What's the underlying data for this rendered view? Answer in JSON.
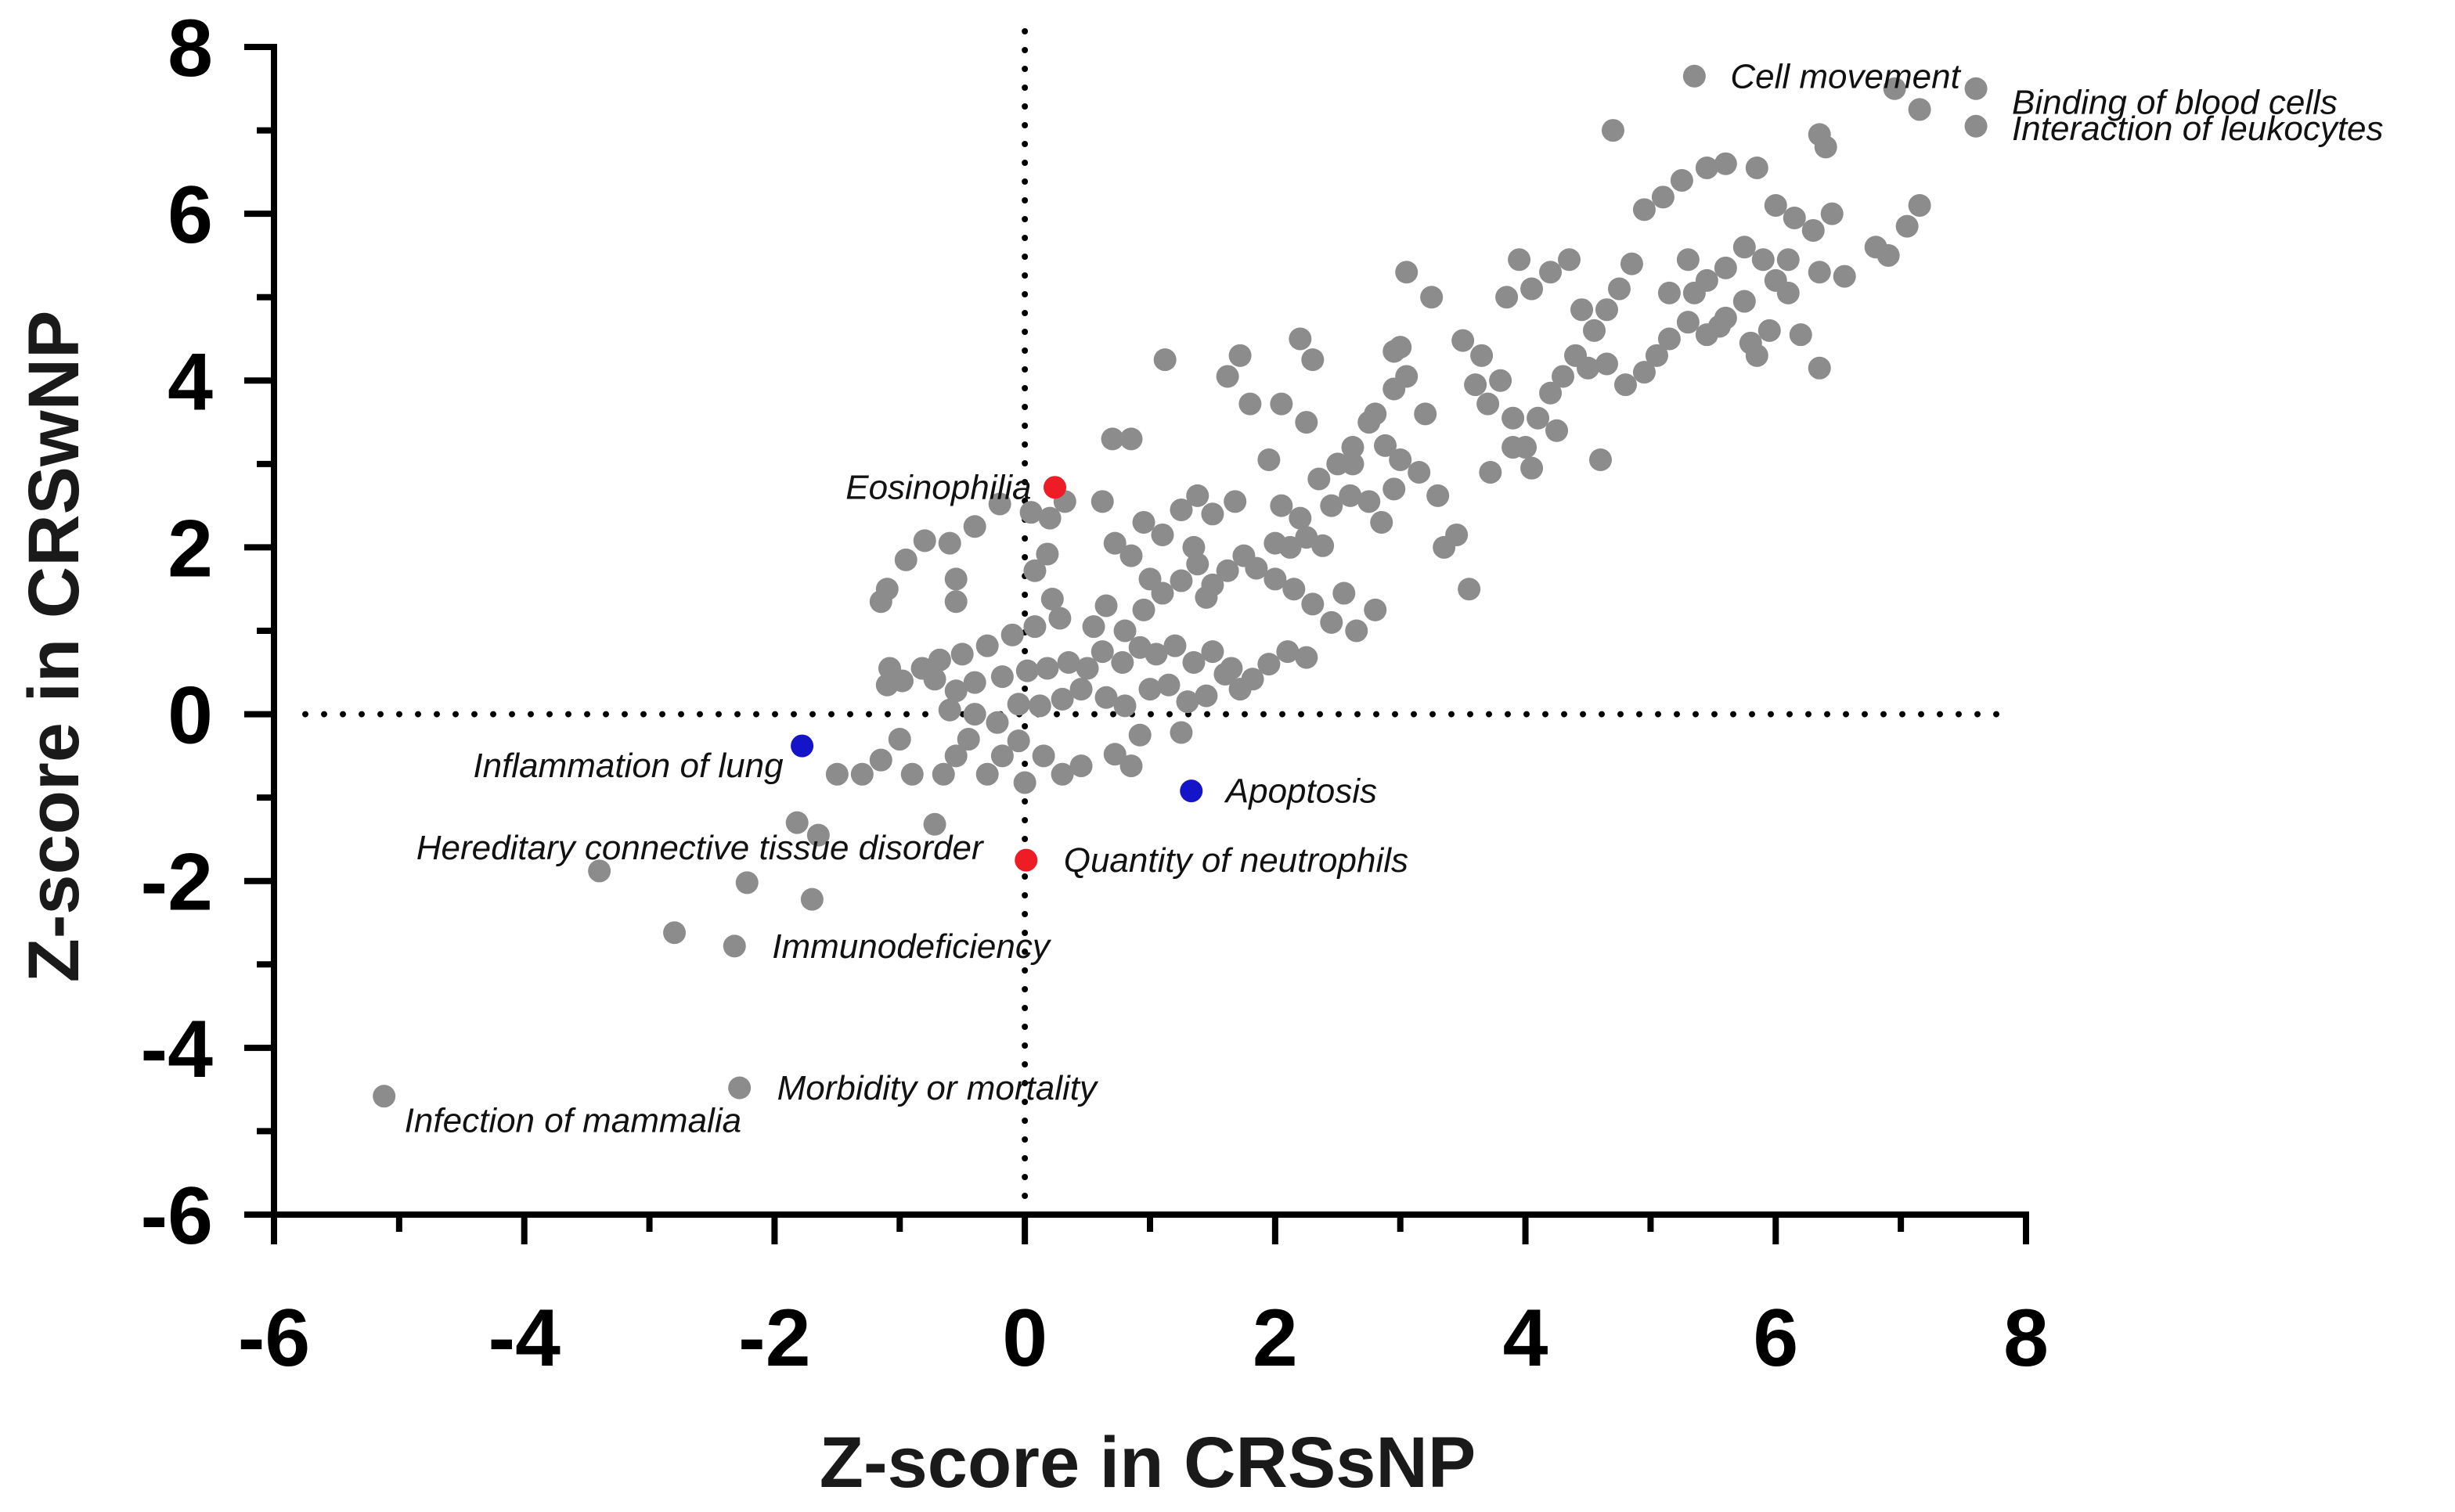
{
  "chart_data": {
    "type": "scatter",
    "xlabel": "Z-score in CRSsNP",
    "ylabel": "Z-score in CRSwNP",
    "xlim": [
      -6,
      8
    ],
    "ylim": [
      -6,
      8
    ],
    "x_ticks": [
      -6,
      -4,
      -2,
      0,
      2,
      4,
      6,
      8
    ],
    "y_ticks": [
      8,
      6,
      4,
      2,
      0,
      -2,
      -4,
      -6
    ],
    "x_tick_labels": [
      "-6",
      "-4",
      "-2",
      "0",
      "2",
      "4",
      "6",
      "8"
    ],
    "y_tick_labels": [
      "8",
      "6",
      "4",
      "2",
      "0",
      "-2",
      "-4",
      "-6"
    ],
    "reference_lines": {
      "x": 0,
      "y": 0,
      "style": "dotted"
    },
    "grid": false,
    "legend": "none",
    "colors": {
      "default": "#8c8c8c",
      "red": "#ee1c24",
      "blue": "#1414c8"
    },
    "highlighted": [
      {
        "label": "Cell movement",
        "x": 5.35,
        "y": 7.65,
        "color": "gray"
      },
      {
        "label": "Binding of blood cells",
        "x": 7.6,
        "y": 7.5,
        "color": "gray"
      },
      {
        "label": "Interaction of leukocytes",
        "x": 7.6,
        "y": 7.05,
        "color": "gray"
      },
      {
        "label": "Eosinophilia",
        "x": 0.24,
        "y": 2.72,
        "color": "red"
      },
      {
        "label": "Quantity of neutrophils",
        "x": 0.01,
        "y": -1.75,
        "color": "red"
      },
      {
        "label": "Inflammation of lung",
        "x": -1.78,
        "y": -0.38,
        "color": "blue"
      },
      {
        "label": "Apoptosis",
        "x": 1.33,
        "y": -0.92,
        "color": "blue"
      },
      {
        "label": "Hereditary connective tissue disorder",
        "x": -3.4,
        "y": -1.88,
        "color": "gray"
      },
      {
        "label": "Immunodeficiency",
        "x": -2.32,
        "y": -2.78,
        "color": "gray"
      },
      {
        "label": "Morbidity or mortality",
        "x": -2.28,
        "y": -4.48,
        "color": "gray"
      },
      {
        "label": "Infection of mammalia",
        "x": -5.12,
        "y": -4.58,
        "color": "gray"
      }
    ],
    "points": [
      [
        -2.8,
        -2.62
      ],
      [
        -2.22,
        -2.02
      ],
      [
        -1.7,
        -2.22
      ],
      [
        -1.65,
        -1.45
      ],
      [
        -1.82,
        -1.3
      ],
      [
        -1.5,
        -0.72
      ],
      [
        -1.3,
        -0.72
      ],
      [
        -1.15,
        -0.55
      ],
      [
        -1.0,
        -0.3
      ],
      [
        -0.9,
        -0.72
      ],
      [
        -0.72,
        -1.32
      ],
      [
        -0.65,
        -0.72
      ],
      [
        -0.55,
        -0.5
      ],
      [
        -0.45,
        -0.3
      ],
      [
        -0.3,
        -0.72
      ],
      [
        -0.18,
        -0.5
      ],
      [
        -0.05,
        -0.32
      ],
      [
        0.0,
        -0.82
      ],
      [
        0.15,
        -0.5
      ],
      [
        0.3,
        -0.72
      ],
      [
        0.45,
        -0.62
      ],
      [
        0.72,
        -0.48
      ],
      [
        0.85,
        -0.62
      ],
      [
        0.92,
        -0.25
      ],
      [
        1.25,
        -0.22
      ],
      [
        -1.15,
        1.35
      ],
      [
        -1.1,
        1.5
      ],
      [
        -0.95,
        1.85
      ],
      [
        -0.8,
        2.08
      ],
      [
        -0.6,
        2.05
      ],
      [
        -0.55,
        1.62
      ],
      [
        -0.55,
        1.35
      ],
      [
        -0.4,
        2.25
      ],
      [
        -0.2,
        2.52
      ],
      [
        0.05,
        2.42
      ],
      [
        0.2,
        2.35
      ],
      [
        0.32,
        2.55
      ],
      [
        0.18,
        1.92
      ],
      [
        0.08,
        1.72
      ],
      [
        0.22,
        1.38
      ],
      [
        0.28,
        1.15
      ],
      [
        0.08,
        1.05
      ],
      [
        -0.1,
        0.95
      ],
      [
        -0.3,
        0.82
      ],
      [
        -0.5,
        0.72
      ],
      [
        -0.68,
        0.65
      ],
      [
        -0.82,
        0.55
      ],
      [
        -1.08,
        0.55
      ],
      [
        -1.1,
        0.35
      ],
      [
        -0.98,
        0.4
      ],
      [
        -0.72,
        0.42
      ],
      [
        -0.55,
        0.28
      ],
      [
        -0.4,
        0.38
      ],
      [
        -0.18,
        0.45
      ],
      [
        0.02,
        0.52
      ],
      [
        0.18,
        0.55
      ],
      [
        0.35,
        0.62
      ],
      [
        0.5,
        0.55
      ],
      [
        0.62,
        0.75
      ],
      [
        0.78,
        0.62
      ],
      [
        0.92,
        0.8
      ],
      [
        1.05,
        0.72
      ],
      [
        1.2,
        0.82
      ],
      [
        1.35,
        0.62
      ],
      [
        1.5,
        0.75
      ],
      [
        1.65,
        0.55
      ],
      [
        1.82,
        0.42
      ],
      [
        1.95,
        0.6
      ],
      [
        2.1,
        0.75
      ],
      [
        2.25,
        0.68
      ],
      [
        -0.6,
        0.05
      ],
      [
        -0.4,
        0.0
      ],
      [
        -0.22,
        -0.1
      ],
      [
        -0.05,
        0.12
      ],
      [
        0.12,
        0.1
      ],
      [
        0.3,
        0.18
      ],
      [
        0.45,
        0.3
      ],
      [
        0.65,
        0.2
      ],
      [
        0.8,
        0.1
      ],
      [
        1.0,
        0.3
      ],
      [
        1.15,
        0.35
      ],
      [
        1.3,
        0.15
      ],
      [
        1.45,
        0.22
      ],
      [
        1.6,
        0.48
      ],
      [
        1.72,
        0.3
      ],
      [
        0.55,
        1.05
      ],
      [
        0.65,
        1.3
      ],
      [
        0.8,
        1.0
      ],
      [
        0.95,
        1.25
      ],
      [
        1.1,
        1.45
      ],
      [
        1.25,
        1.6
      ],
      [
        1.38,
        1.8
      ],
      [
        1.5,
        1.55
      ],
      [
        1.62,
        1.72
      ],
      [
        1.75,
        1.9
      ],
      [
        1.0,
        1.62
      ],
      [
        0.85,
        1.9
      ],
      [
        0.72,
        2.05
      ],
      [
        0.95,
        2.3
      ],
      [
        1.1,
        2.15
      ],
      [
        1.25,
        2.45
      ],
      [
        1.38,
        2.62
      ],
      [
        1.5,
        2.4
      ],
      [
        1.68,
        2.55
      ],
      [
        0.62,
        2.55
      ],
      [
        0.7,
        3.3
      ],
      [
        0.85,
        3.3
      ],
      [
        1.12,
        4.25
      ],
      [
        1.35,
        2.0
      ],
      [
        1.45,
        1.4
      ],
      [
        1.85,
        1.75
      ],
      [
        2.0,
        1.62
      ],
      [
        2.12,
        2.0
      ],
      [
        2.25,
        2.12
      ],
      [
        2.38,
        2.02
      ],
      [
        2.45,
        2.5
      ],
      [
        2.6,
        2.62
      ],
      [
        2.75,
        2.55
      ],
      [
        2.85,
        2.3
      ],
      [
        2.95,
        2.7
      ],
      [
        2.05,
        2.5
      ],
      [
        2.2,
        2.35
      ],
      [
        2.35,
        2.82
      ],
      [
        2.5,
        3.0
      ],
      [
        2.62,
        3.2
      ],
      [
        2.75,
        3.5
      ],
      [
        2.88,
        3.22
      ],
      [
        3.0,
        3.05
      ],
      [
        3.15,
        2.9
      ],
      [
        3.3,
        2.62
      ],
      [
        2.0,
        2.05
      ],
      [
        2.15,
        1.5
      ],
      [
        2.3,
        1.32
      ],
      [
        2.45,
        1.1
      ],
      [
        2.55,
        1.45
      ],
      [
        2.65,
        1.0
      ],
      [
        2.8,
        1.25
      ],
      [
        1.95,
        3.05
      ],
      [
        2.05,
        3.72
      ],
      [
        2.25,
        3.5
      ],
      [
        1.8,
        3.72
      ],
      [
        1.62,
        4.05
      ],
      [
        1.72,
        4.3
      ],
      [
        2.2,
        4.5
      ],
      [
        2.3,
        4.25
      ],
      [
        2.62,
        3.0
      ],
      [
        2.8,
        3.6
      ],
      [
        2.95,
        3.9
      ],
      [
        3.05,
        4.05
      ],
      [
        3.2,
        3.6
      ],
      [
        3.05,
        5.3
      ],
      [
        2.95,
        4.35
      ],
      [
        3.35,
        2.0
      ],
      [
        3.45,
        2.15
      ],
      [
        3.55,
        1.5
      ],
      [
        3.5,
        4.48
      ],
      [
        3.6,
        3.95
      ],
      [
        3.7,
        3.72
      ],
      [
        3.8,
        4.0
      ],
      [
        3.9,
        3.55
      ],
      [
        4.0,
        3.2
      ],
      [
        4.1,
        3.55
      ],
      [
        4.2,
        3.85
      ],
      [
        4.3,
        4.05
      ],
      [
        4.4,
        4.3
      ],
      [
        3.85,
        5.0
      ],
      [
        3.95,
        5.45
      ],
      [
        4.05,
        5.1
      ],
      [
        4.2,
        5.3
      ],
      [
        4.35,
        5.45
      ],
      [
        4.45,
        4.85
      ],
      [
        4.55,
        4.6
      ],
      [
        4.65,
        4.85
      ],
      [
        4.75,
        5.1
      ],
      [
        4.85,
        5.4
      ],
      [
        4.5,
        4.15
      ],
      [
        4.65,
        4.2
      ],
      [
        4.8,
        3.95
      ],
      [
        4.95,
        4.1
      ],
      [
        5.05,
        4.3
      ],
      [
        5.15,
        4.5
      ],
      [
        5.3,
        4.7
      ],
      [
        5.45,
        4.55
      ],
      [
        5.6,
        4.75
      ],
      [
        5.75,
        4.95
      ],
      [
        5.15,
        5.05
      ],
      [
        5.3,
        5.45
      ],
      [
        5.45,
        5.2
      ],
      [
        5.6,
        5.35
      ],
      [
        5.75,
        5.6
      ],
      [
        5.9,
        5.45
      ],
      [
        6.0,
        5.2
      ],
      [
        6.1,
        5.05
      ],
      [
        5.95,
        4.6
      ],
      [
        5.85,
        4.3
      ],
      [
        4.95,
        6.05
      ],
      [
        5.1,
        6.2
      ],
      [
        5.25,
        6.4
      ],
      [
        5.45,
        6.55
      ],
      [
        5.6,
        6.6
      ],
      [
        5.85,
        6.55
      ],
      [
        6.0,
        6.1
      ],
      [
        6.15,
        5.95
      ],
      [
        6.3,
        5.8
      ],
      [
        6.45,
        6.0
      ],
      [
        5.35,
        5.05
      ],
      [
        5.55,
        4.65
      ],
      [
        5.8,
        4.45
      ],
      [
        6.2,
        4.55
      ],
      [
        6.35,
        4.15
      ],
      [
        6.1,
        5.45
      ],
      [
        6.35,
        5.3
      ],
      [
        6.55,
        5.25
      ],
      [
        6.8,
        5.6
      ],
      [
        6.9,
        5.5
      ],
      [
        7.05,
        5.85
      ],
      [
        7.15,
        6.1
      ],
      [
        6.35,
        6.95
      ],
      [
        6.4,
        6.8
      ],
      [
        4.7,
        7.0
      ],
      [
        6.95,
        7.5
      ],
      [
        7.15,
        7.25
      ],
      [
        3.0,
        4.4
      ],
      [
        3.25,
        5.0
      ],
      [
        3.65,
        4.3
      ],
      [
        4.05,
        2.95
      ],
      [
        4.6,
        3.05
      ],
      [
        4.25,
        3.4
      ],
      [
        3.9,
        3.2
      ],
      [
        3.72,
        2.9
      ]
    ]
  }
}
